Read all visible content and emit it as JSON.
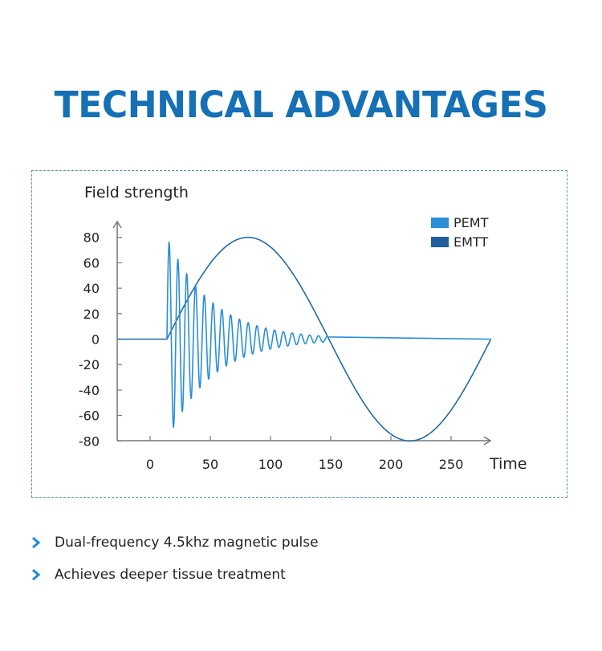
{
  "header": {
    "title": "TECHNICAL ADVANTAGES"
  },
  "chart_data": {
    "type": "line",
    "title": "",
    "ylabel": "Field strength",
    "xlabel": "Time",
    "xlim": [
      -27,
      290
    ],
    "ylim": [
      -80,
      83
    ],
    "xticks": [
      0,
      50,
      100,
      150,
      200,
      250
    ],
    "yticks": [
      80,
      60,
      40,
      20,
      0,
      -20,
      -40,
      -60,
      -80
    ],
    "grid": false,
    "legend": "top-right",
    "colors": {
      "pemt": "#2a8fd8",
      "emtt": "#1f5f9e",
      "curve": "#1f6aa8",
      "axis": "#777777"
    },
    "series": [
      {
        "name": "PEMT",
        "shape": "damped oscillation",
        "x_start": 14,
        "x_end": 148,
        "peak_amplitude": 80,
        "period": 7.3,
        "peaks": [
          80,
          65,
          54,
          46,
          38,
          31,
          25,
          20,
          16,
          12,
          9,
          7,
          5,
          4,
          3,
          2
        ]
      },
      {
        "name": "EMTT",
        "shape": "single sine period",
        "x_start": 14,
        "x_end": 283,
        "amplitude": 80,
        "peak": [
          85,
          80
        ],
        "trough": [
          220,
          -80
        ],
        "baseline": [
          [
            -27,
            0
          ],
          [
            14,
            0
          ]
        ]
      }
    ]
  },
  "bullets": [
    {
      "text": "Dual-frequency 4.5khz magnetic pulse"
    },
    {
      "text": "Achieves deeper tissue treatment"
    }
  ]
}
